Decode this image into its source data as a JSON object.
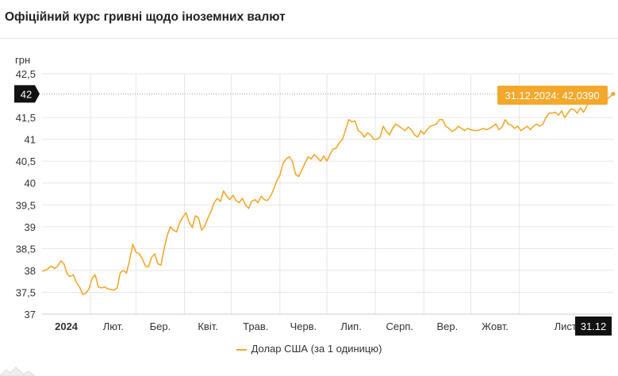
{
  "header": {
    "title": "Офіційний курс гривні щодо іноземних валют"
  },
  "colors": {
    "line": "#F3A82C",
    "tooltip": "#F3A82C",
    "badge": "#111111",
    "grid": "#e6e6e6"
  },
  "chart_data": {
    "type": "line",
    "ylabel": "грн",
    "ylim": [
      37,
      42.5
    ],
    "yticks": [
      "37",
      "37,5",
      "38",
      "38,5",
      "39",
      "39,5",
      "40",
      "40,5",
      "41",
      "41,5",
      "42,5"
    ],
    "yticks_values": [
      37,
      37.5,
      38,
      38.5,
      39,
      39.5,
      40,
      40.5,
      41,
      41.5,
      42.5
    ],
    "xlim": [
      "2024-01-01",
      "2024-12-31"
    ],
    "xticks": [
      {
        "date": "2024-01-01",
        "label": "2024"
      },
      {
        "date": "2024-02-01",
        "label": "Лют."
      },
      {
        "date": "2024-03-01",
        "label": "Бер."
      },
      {
        "date": "2024-04-01",
        "label": "Квіт."
      },
      {
        "date": "2024-05-01",
        "label": "Трав."
      },
      {
        "date": "2024-06-01",
        "label": "Черв."
      },
      {
        "date": "2024-07-01",
        "label": "Лип."
      },
      {
        "date": "2024-08-01",
        "label": "Серп."
      },
      {
        "date": "2024-09-01",
        "label": "Вер."
      },
      {
        "date": "2024-10-01",
        "label": "Жовт."
      },
      {
        "date": "2024-11-01",
        "label": "Лист."
      }
    ],
    "crosshair": {
      "x_label": "31.12",
      "y_label": "42",
      "y_value": 42.039,
      "tooltip": "31.12.2024: 42,0390"
    },
    "series": [
      {
        "name": "Долар США (за 1 одиницю)",
        "points": [
          [
            "2024-01-01",
            37.98
          ],
          [
            "2024-01-04",
            38.02
          ],
          [
            "2024-01-07",
            38.1
          ],
          [
            "2024-01-09",
            38.04
          ],
          [
            "2024-01-11",
            38.1
          ],
          [
            "2024-01-13",
            38.22
          ],
          [
            "2024-01-15",
            38.15
          ],
          [
            "2024-01-17",
            37.92
          ],
          [
            "2024-01-19",
            37.86
          ],
          [
            "2024-01-21",
            37.9
          ],
          [
            "2024-01-23",
            37.72
          ],
          [
            "2024-01-25",
            37.62
          ],
          [
            "2024-01-27",
            37.45
          ],
          [
            "2024-01-29",
            37.48
          ],
          [
            "2024-01-31",
            37.58
          ],
          [
            "2024-02-02",
            37.82
          ],
          [
            "2024-02-04",
            37.9
          ],
          [
            "2024-02-06",
            37.62
          ],
          [
            "2024-02-08",
            37.6
          ],
          [
            "2024-02-10",
            37.62
          ],
          [
            "2024-02-12",
            37.58
          ],
          [
            "2024-02-14",
            37.56
          ],
          [
            "2024-02-16",
            37.55
          ],
          [
            "2024-02-18",
            37.6
          ],
          [
            "2024-02-20",
            37.95
          ],
          [
            "2024-02-22",
            38.0
          ],
          [
            "2024-02-24",
            37.94
          ],
          [
            "2024-02-26",
            38.25
          ],
          [
            "2024-02-28",
            38.6
          ],
          [
            "2024-03-01",
            38.42
          ],
          [
            "2024-03-03",
            38.38
          ],
          [
            "2024-03-05",
            38.28
          ],
          [
            "2024-03-07",
            38.1
          ],
          [
            "2024-03-09",
            38.08
          ],
          [
            "2024-03-11",
            38.3
          ],
          [
            "2024-03-13",
            38.38
          ],
          [
            "2024-03-15",
            38.15
          ],
          [
            "2024-03-17",
            38.12
          ],
          [
            "2024-03-19",
            38.5
          ],
          [
            "2024-03-21",
            38.8
          ],
          [
            "2024-03-23",
            39.0
          ],
          [
            "2024-03-25",
            38.92
          ],
          [
            "2024-03-27",
            38.88
          ],
          [
            "2024-03-29",
            39.1
          ],
          [
            "2024-03-31",
            39.22
          ],
          [
            "2024-04-02",
            39.32
          ],
          [
            "2024-04-04",
            39.1
          ],
          [
            "2024-04-06",
            38.98
          ],
          [
            "2024-04-08",
            39.25
          ],
          [
            "2024-04-10",
            39.2
          ],
          [
            "2024-04-12",
            38.92
          ],
          [
            "2024-04-14",
            39.02
          ],
          [
            "2024-04-16",
            39.2
          ],
          [
            "2024-04-18",
            39.35
          ],
          [
            "2024-04-20",
            39.55
          ],
          [
            "2024-04-22",
            39.65
          ],
          [
            "2024-04-24",
            39.58
          ],
          [
            "2024-04-26",
            39.82
          ],
          [
            "2024-04-28",
            39.7
          ],
          [
            "2024-04-30",
            39.62
          ],
          [
            "2024-05-02",
            39.72
          ],
          [
            "2024-05-04",
            39.6
          ],
          [
            "2024-05-06",
            39.55
          ],
          [
            "2024-05-08",
            39.65
          ],
          [
            "2024-05-10",
            39.5
          ],
          [
            "2024-05-12",
            39.42
          ],
          [
            "2024-05-14",
            39.58
          ],
          [
            "2024-05-16",
            39.62
          ],
          [
            "2024-05-18",
            39.55
          ],
          [
            "2024-05-20",
            39.7
          ],
          [
            "2024-05-22",
            39.62
          ],
          [
            "2024-05-24",
            39.6
          ],
          [
            "2024-05-26",
            39.7
          ],
          [
            "2024-05-28",
            39.85
          ],
          [
            "2024-05-30",
            40.05
          ],
          [
            "2024-06-01",
            40.18
          ],
          [
            "2024-06-03",
            40.45
          ],
          [
            "2024-06-05",
            40.55
          ],
          [
            "2024-06-07",
            40.6
          ],
          [
            "2024-06-09",
            40.5
          ],
          [
            "2024-06-11",
            40.2
          ],
          [
            "2024-06-13",
            40.15
          ],
          [
            "2024-06-15",
            40.3
          ],
          [
            "2024-06-17",
            40.45
          ],
          [
            "2024-06-19",
            40.6
          ],
          [
            "2024-06-21",
            40.55
          ],
          [
            "2024-06-23",
            40.65
          ],
          [
            "2024-06-25",
            40.58
          ],
          [
            "2024-06-27",
            40.5
          ],
          [
            "2024-06-29",
            40.62
          ],
          [
            "2024-07-01",
            40.5
          ],
          [
            "2024-07-03",
            40.65
          ],
          [
            "2024-07-05",
            40.78
          ],
          [
            "2024-07-07",
            40.8
          ],
          [
            "2024-07-09",
            40.92
          ],
          [
            "2024-07-11",
            41.0
          ],
          [
            "2024-07-13",
            41.22
          ],
          [
            "2024-07-15",
            41.45
          ],
          [
            "2024-07-17",
            41.4
          ],
          [
            "2024-07-19",
            41.42
          ],
          [
            "2024-07-21",
            41.2
          ],
          [
            "2024-07-23",
            41.15
          ],
          [
            "2024-07-25",
            41.05
          ],
          [
            "2024-07-27",
            41.15
          ],
          [
            "2024-07-29",
            41.1
          ],
          [
            "2024-07-31",
            41.0
          ],
          [
            "2024-08-02",
            41.0
          ],
          [
            "2024-08-04",
            41.05
          ],
          [
            "2024-08-06",
            41.3
          ],
          [
            "2024-08-08",
            41.18
          ],
          [
            "2024-08-10",
            41.1
          ],
          [
            "2024-08-12",
            41.25
          ],
          [
            "2024-08-14",
            41.35
          ],
          [
            "2024-08-16",
            41.3
          ],
          [
            "2024-08-18",
            41.25
          ],
          [
            "2024-08-20",
            41.2
          ],
          [
            "2024-08-22",
            41.28
          ],
          [
            "2024-08-24",
            41.22
          ],
          [
            "2024-08-26",
            41.1
          ],
          [
            "2024-08-28",
            41.05
          ],
          [
            "2024-08-30",
            41.2
          ],
          [
            "2024-09-01",
            41.12
          ],
          [
            "2024-09-03",
            41.22
          ],
          [
            "2024-09-05",
            41.3
          ],
          [
            "2024-09-07",
            41.32
          ],
          [
            "2024-09-09",
            41.35
          ],
          [
            "2024-09-11",
            41.45
          ],
          [
            "2024-09-13",
            41.45
          ],
          [
            "2024-09-15",
            41.3
          ],
          [
            "2024-09-17",
            41.25
          ],
          [
            "2024-09-19",
            41.18
          ],
          [
            "2024-09-21",
            41.22
          ],
          [
            "2024-09-23",
            41.3
          ],
          [
            "2024-09-25",
            41.25
          ],
          [
            "2024-09-27",
            41.2
          ],
          [
            "2024-09-29",
            41.25
          ],
          [
            "2024-10-01",
            41.22
          ],
          [
            "2024-10-03",
            41.2
          ],
          [
            "2024-10-05",
            41.2
          ],
          [
            "2024-10-07",
            41.22
          ],
          [
            "2024-10-09",
            41.25
          ],
          [
            "2024-10-11",
            41.22
          ],
          [
            "2024-10-13",
            41.25
          ],
          [
            "2024-10-15",
            41.3
          ],
          [
            "2024-10-17",
            41.35
          ],
          [
            "2024-10-19",
            41.22
          ],
          [
            "2024-10-21",
            41.28
          ],
          [
            "2024-10-23",
            41.45
          ],
          [
            "2024-10-25",
            41.35
          ],
          [
            "2024-10-27",
            41.32
          ],
          [
            "2024-10-29",
            41.25
          ],
          [
            "2024-10-31",
            41.3
          ],
          [
            "2024-11-02",
            41.2
          ],
          [
            "2024-11-04",
            41.25
          ],
          [
            "2024-11-06",
            41.3
          ],
          [
            "2024-11-08",
            41.22
          ],
          [
            "2024-11-10",
            41.3
          ],
          [
            "2024-11-12",
            41.35
          ],
          [
            "2024-11-14",
            41.3
          ],
          [
            "2024-11-16",
            41.35
          ],
          [
            "2024-11-18",
            41.5
          ],
          [
            "2024-11-20",
            41.6
          ],
          [
            "2024-11-22",
            41.6
          ],
          [
            "2024-11-24",
            41.62
          ],
          [
            "2024-11-26",
            41.55
          ],
          [
            "2024-11-28",
            41.65
          ],
          [
            "2024-11-30",
            41.5
          ],
          [
            "2024-12-02",
            41.6
          ],
          [
            "2024-12-04",
            41.7
          ],
          [
            "2024-12-06",
            41.68
          ],
          [
            "2024-12-08",
            41.6
          ],
          [
            "2024-12-10",
            41.72
          ],
          [
            "2024-12-12",
            41.62
          ],
          [
            "2024-12-14",
            41.75
          ],
          [
            "2024-12-16",
            41.9
          ],
          [
            "2024-12-18",
            41.95
          ],
          [
            "2024-12-20",
            41.9
          ],
          [
            "2024-12-22",
            41.95
          ],
          [
            "2024-12-24",
            41.9
          ],
          [
            "2024-12-26",
            41.88
          ],
          [
            "2024-12-28",
            41.95
          ],
          [
            "2024-12-31",
            42.039
          ]
        ]
      }
    ]
  }
}
